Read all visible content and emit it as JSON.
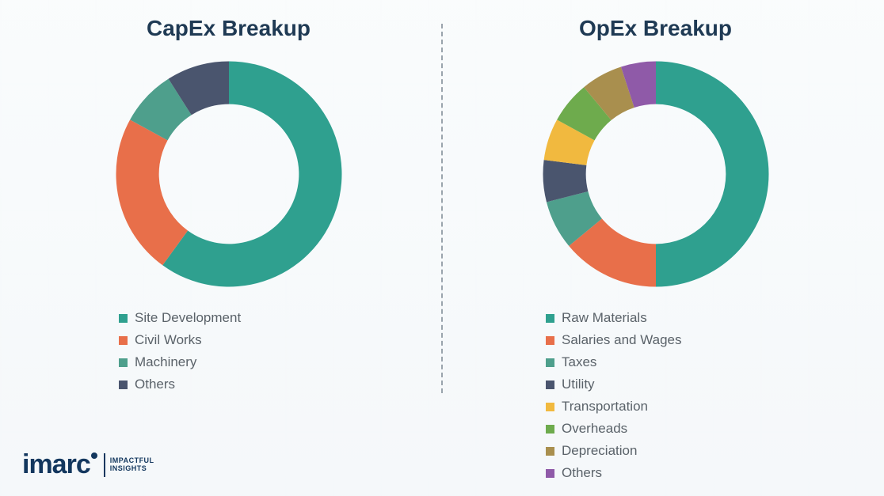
{
  "background_color": "#f4f7f9",
  "divider_color": "#9aa4ad",
  "title_color": "#1f3a54",
  "title_fontsize": 28,
  "legend_text_color": "#5a6269",
  "legend_fontsize": 17,
  "charts": {
    "capex": {
      "title": "CapEx Breakup",
      "type": "donut",
      "start_angle_deg": 0,
      "inner_radius_pct": 62,
      "rotation_deg": 0,
      "slices": [
        {
          "label": "Site Development",
          "value": 60,
          "color": "#2fa08f"
        },
        {
          "label": "Civil Works",
          "value": 23,
          "color": "#e86f4a"
        },
        {
          "label": "Machinery",
          "value": 8,
          "color": "#4e9f8c"
        },
        {
          "label": "Others",
          "value": 9,
          "color": "#4a556e"
        }
      ]
    },
    "opex": {
      "title": "OpEx Breakup",
      "type": "donut",
      "start_angle_deg": 0,
      "inner_radius_pct": 62,
      "slices": [
        {
          "label": "Raw Materials",
          "value": 50,
          "color": "#2fa08f"
        },
        {
          "label": "Salaries and Wages",
          "value": 14,
          "color": "#e86f4a"
        },
        {
          "label": "Taxes",
          "value": 7,
          "color": "#4e9f8c"
        },
        {
          "label": "Utility",
          "value": 6,
          "color": "#4a556e"
        },
        {
          "label": "Transportation",
          "value": 6,
          "color": "#f1b93f"
        },
        {
          "label": "Overheads",
          "value": 6,
          "color": "#6eab4d"
        },
        {
          "label": "Depreciation",
          "value": 6,
          "color": "#a98f4e"
        },
        {
          "label": "Others",
          "value": 5,
          "color": "#8f5aa8"
        }
      ]
    }
  },
  "logo": {
    "brand": "imarc",
    "tagline_line1": "IMPACTFUL",
    "tagline_line2": "INSIGHTS",
    "color": "#13375e"
  }
}
